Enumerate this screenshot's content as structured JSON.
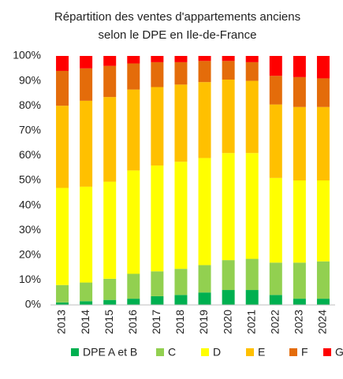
{
  "chart_data": {
    "type": "stacked_bar",
    "title": "Répartition des ventes d'appartements anciens selon le DPE en Ile-de-France",
    "categories": [
      "2013",
      "2014",
      "2015",
      "2016",
      "2017",
      "2018",
      "2019",
      "2020",
      "2021",
      "2022",
      "2023",
      "2024"
    ],
    "series": [
      {
        "name": "DPE A et B",
        "color": "#00b050",
        "values": [
          1,
          1.5,
          2,
          2.5,
          3.5,
          4,
          5,
          6,
          6,
          4,
          2.5,
          2.5
        ]
      },
      {
        "name": "C",
        "color": "#92d050",
        "values": [
          7,
          7.5,
          8.5,
          10,
          10,
          10.5,
          11,
          12,
          12.5,
          13,
          14.5,
          15
        ]
      },
      {
        "name": "D",
        "color": "#ffff00",
        "values": [
          39,
          38.5,
          39,
          41.5,
          42.5,
          43,
          43,
          43,
          42.5,
          34,
          33,
          32.5
        ]
      },
      {
        "name": "E",
        "color": "#ffc000",
        "values": [
          33,
          34.5,
          34,
          32.5,
          31.5,
          31,
          30.5,
          29.5,
          29,
          29.5,
          29.5,
          29.5
        ]
      },
      {
        "name": "F",
        "color": "#e46c0a",
        "values": [
          14,
          13,
          12.5,
          10.5,
          10,
          9,
          8.5,
          7.5,
          7.5,
          11.5,
          12,
          11.5
        ]
      },
      {
        "name": "G",
        "color": "#ff0000",
        "values": [
          6,
          5,
          4,
          3,
          2.5,
          2.5,
          2,
          2,
          2.5,
          8,
          8.5,
          9
        ]
      }
    ],
    "ylim": [
      0,
      100
    ],
    "yticks": [
      {
        "value": 0,
        "label": "0%"
      },
      {
        "value": 10,
        "label": "10%"
      },
      {
        "value": 20,
        "label": "20%"
      },
      {
        "value": 30,
        "label": "30%"
      },
      {
        "value": 40,
        "label": "40%"
      },
      {
        "value": 50,
        "label": "50%"
      },
      {
        "value": 60,
        "label": "60%"
      },
      {
        "value": 70,
        "label": "70%"
      },
      {
        "value": 80,
        "label": "80%"
      },
      {
        "value": 90,
        "label": "90%"
      },
      {
        "value": 100,
        "label": "100%"
      }
    ],
    "grid": false
  }
}
